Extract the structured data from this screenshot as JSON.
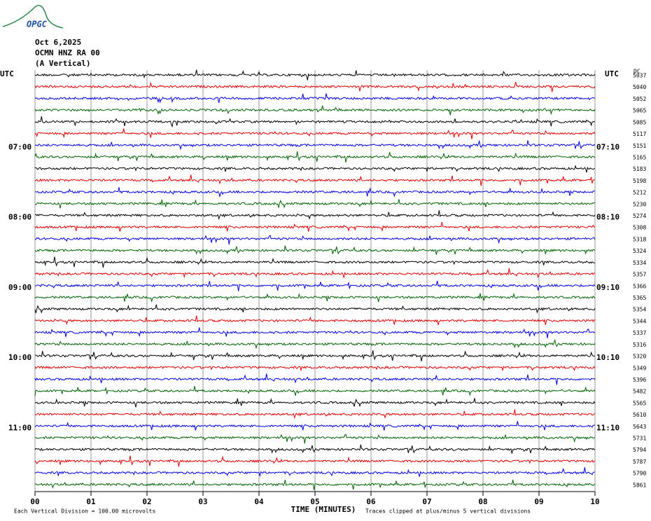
{
  "chart_data": {
    "type": "helicorder",
    "logo": "OPGC",
    "title_lines": [
      "Oct 6,2025",
      "OCMN HNZ RA 00",
      "(A Vertical)"
    ],
    "left_header": "UTC",
    "right_header": "UTC",
    "dc_header": "DC",
    "x_label": "TIME (MINUTES)",
    "scale_note": "Each Vertical Division =  100.00 microvolts",
    "clip_note": "Traces clipped at plus/minus 5 vertical divisions",
    "xlim": [
      0,
      10
    ],
    "xticks": [
      {
        "value": 0,
        "label": "00"
      },
      {
        "value": 1,
        "label": "01"
      },
      {
        "value": 2,
        "label": "02"
      },
      {
        "value": 3,
        "label": "03"
      },
      {
        "value": 4,
        "label": "04"
      },
      {
        "value": 5,
        "label": "05"
      },
      {
        "value": 6,
        "label": "06"
      },
      {
        "value": 7,
        "label": "07"
      },
      {
        "value": 8,
        "label": "08"
      },
      {
        "value": 9,
        "label": "09"
      },
      {
        "value": 10,
        "label": "10"
      }
    ],
    "grid": true,
    "colors": [
      "#000000",
      "#e00000",
      "#0000e0",
      "#006400"
    ],
    "left_labels": [
      null,
      null,
      null,
      null,
      null,
      null,
      "07:00",
      null,
      null,
      null,
      null,
      null,
      "08:00",
      null,
      null,
      null,
      null,
      null,
      "09:00",
      null,
      null,
      null,
      null,
      null,
      "10:00",
      null,
      null,
      null,
      null,
      null,
      "11:00",
      null,
      null,
      null,
      null,
      null
    ],
    "right_labels": [
      null,
      null,
      null,
      null,
      null,
      null,
      "07:10",
      null,
      null,
      null,
      null,
      null,
      "08:10",
      null,
      null,
      null,
      null,
      null,
      "09:10",
      null,
      null,
      null,
      null,
      null,
      "10:10",
      null,
      null,
      null,
      null,
      null,
      "11:10",
      null,
      null,
      null,
      null,
      null
    ],
    "dc_values": [
      5037,
      5040,
      5052,
      5065,
      5085,
      5117,
      5151,
      5165,
      5183,
      5198,
      5212,
      5230,
      5274,
      5308,
      5318,
      5324,
      5334,
      5357,
      5366,
      5365,
      5354,
      5344,
      5337,
      5316,
      5320,
      5349,
      5396,
      5482,
      5565,
      5610,
      5643,
      5731,
      5794,
      5787,
      5790,
      5861
    ]
  }
}
